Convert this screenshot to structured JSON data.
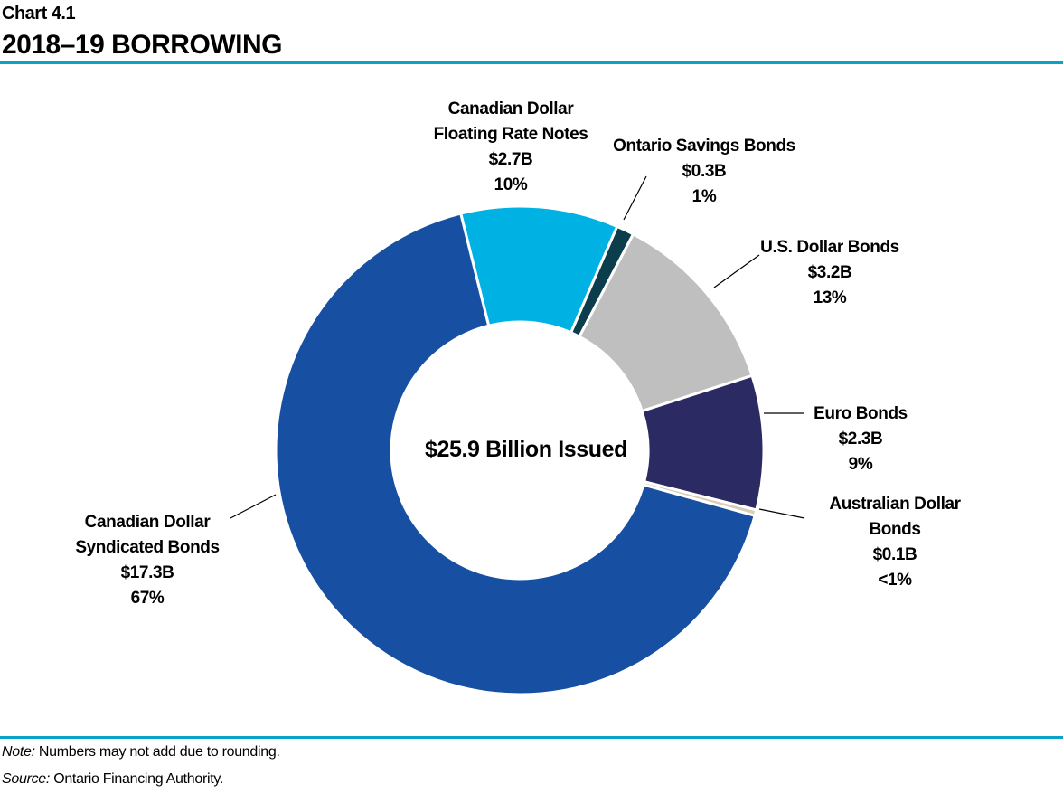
{
  "header": {
    "chart_number": "Chart 4.1",
    "title": "2018–19 BORROWING"
  },
  "chart_data": {
    "type": "pie",
    "donut": true,
    "title": "2018–19 BORROWING",
    "center_label": "$25.9 Billion Issued",
    "unit": "$ billions",
    "slices": [
      {
        "name": [
          "Canadian Dollar",
          "Floating Rate Notes"
        ],
        "value": 2.7,
        "value_label": "$2.7B",
        "percent_label": "10%",
        "color": "#00b2e3"
      },
      {
        "name": [
          "Ontario Savings Bonds"
        ],
        "value": 0.3,
        "value_label": "$0.3B",
        "percent_label": "1%",
        "color": "#0b3d4c"
      },
      {
        "name": [
          "U.S. Dollar Bonds"
        ],
        "value": 3.2,
        "value_label": "$3.2B",
        "percent_label": "13%",
        "color": "#bfbfbf"
      },
      {
        "name": [
          "Euro Bonds"
        ],
        "value": 2.3,
        "value_label": "$2.3B",
        "percent_label": "9%",
        "color": "#2b2a62"
      },
      {
        "name": [
          "Australian Dollar",
          "Bonds"
        ],
        "value": 0.1,
        "value_label": "$0.1B",
        "percent_label": "<1%",
        "color": "#d9cdb8"
      },
      {
        "name": [
          "Canadian Dollar",
          "Syndicated Bonds"
        ],
        "value": 17.3,
        "value_label": "$17.3B",
        "percent_label": "67%",
        "color": "#1750a2"
      }
    ]
  },
  "footer": {
    "note_label": "Note:",
    "note_text": " Numbers may not add due to rounding.",
    "source_label": "Source:",
    "source_text": " Ontario Financing Authority."
  }
}
